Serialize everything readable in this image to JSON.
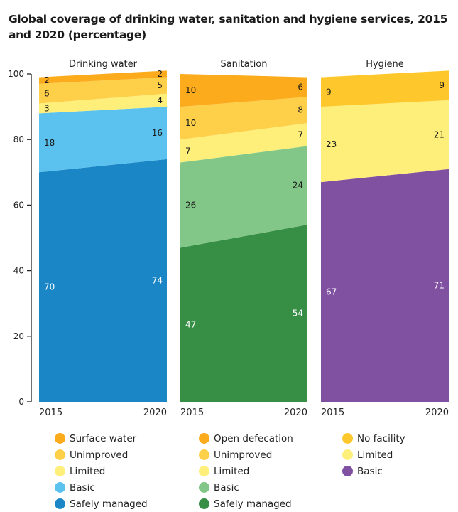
{
  "title": "Global coverage of drinking water, sanitation and hygiene services, 2015 and 2020 (percentage)",
  "chart_data": {
    "type": "area",
    "title": "Global coverage of drinking water, sanitation and hygiene services, 2015 and 2020 (percentage)",
    "xlabel": "",
    "ylabel": "",
    "ylim": [
      0,
      100
    ],
    "yticks": [
      0,
      20,
      40,
      60,
      80,
      100
    ],
    "x": [
      "2015",
      "2020"
    ],
    "grid": false,
    "legend_position": "bottom",
    "panels": [
      {
        "name": "Drinking water",
        "series": [
          {
            "name": "Safely managed",
            "values": [
              70,
              74
            ],
            "color": "#1b86c6",
            "label_color": "#ffffff"
          },
          {
            "name": "Basic",
            "values": [
              18,
              16
            ],
            "color": "#5bc2ef",
            "label_color": "#1a1a1a"
          },
          {
            "name": "Limited",
            "values": [
              3,
              4
            ],
            "color": "#fdef7a",
            "label_color": "#1a1a1a"
          },
          {
            "name": "Unimproved",
            "values": [
              6,
              5
            ],
            "color": "#fed04a",
            "label_color": "#1a1a1a"
          },
          {
            "name": "Surface water",
            "values": [
              2,
              2
            ],
            "color": "#fbab1b",
            "label_color": "#1a1a1a"
          }
        ]
      },
      {
        "name": "Sanitation",
        "series": [
          {
            "name": "Safely managed",
            "values": [
              47,
              54
            ],
            "color": "#378e45",
            "label_color": "#ffffff"
          },
          {
            "name": "Basic",
            "values": [
              26,
              24
            ],
            "color": "#82c787",
            "label_color": "#1a1a1a"
          },
          {
            "name": "Limited",
            "values": [
              7,
              7
            ],
            "color": "#fdef7a",
            "label_color": "#1a1a1a"
          },
          {
            "name": "Unimproved",
            "values": [
              10,
              8
            ],
            "color": "#fed04a",
            "label_color": "#1a1a1a"
          },
          {
            "name": "Open defecation",
            "values": [
              10,
              6
            ],
            "color": "#fbab1b",
            "label_color": "#1a1a1a"
          }
        ]
      },
      {
        "name": "Hygiene",
        "series": [
          {
            "name": "Basic",
            "values": [
              67,
              71
            ],
            "color": "#8051a0",
            "label_color": "#ffffff"
          },
          {
            "name": "Limited",
            "values": [
              23,
              21
            ],
            "color": "#fdef7a",
            "label_color": "#1a1a1a"
          },
          {
            "name": "No facility",
            "values": [
              9,
              9
            ],
            "color": "#fec82c",
            "label_color": "#1a1a1a"
          }
        ]
      }
    ]
  },
  "legends": [
    [
      {
        "label": "Surface water",
        "color": "#fbab1b"
      },
      {
        "label": "Unimproved",
        "color": "#fed04a"
      },
      {
        "label": "Limited",
        "color": "#fdef7a"
      },
      {
        "label": "Basic",
        "color": "#5bc2ef"
      },
      {
        "label": "Safely managed",
        "color": "#1b86c6"
      }
    ],
    [
      {
        "label": "Open defecation",
        "color": "#fbab1b"
      },
      {
        "label": "Unimproved",
        "color": "#fed04a"
      },
      {
        "label": "Limited",
        "color": "#fdef7a"
      },
      {
        "label": "Basic",
        "color": "#82c787"
      },
      {
        "label": "Safely managed",
        "color": "#378e45"
      }
    ],
    [
      {
        "label": "No facility",
        "color": "#fec82c"
      },
      {
        "label": "Limited",
        "color": "#fdef7a"
      },
      {
        "label": "Basic",
        "color": "#8051a0"
      }
    ]
  ]
}
